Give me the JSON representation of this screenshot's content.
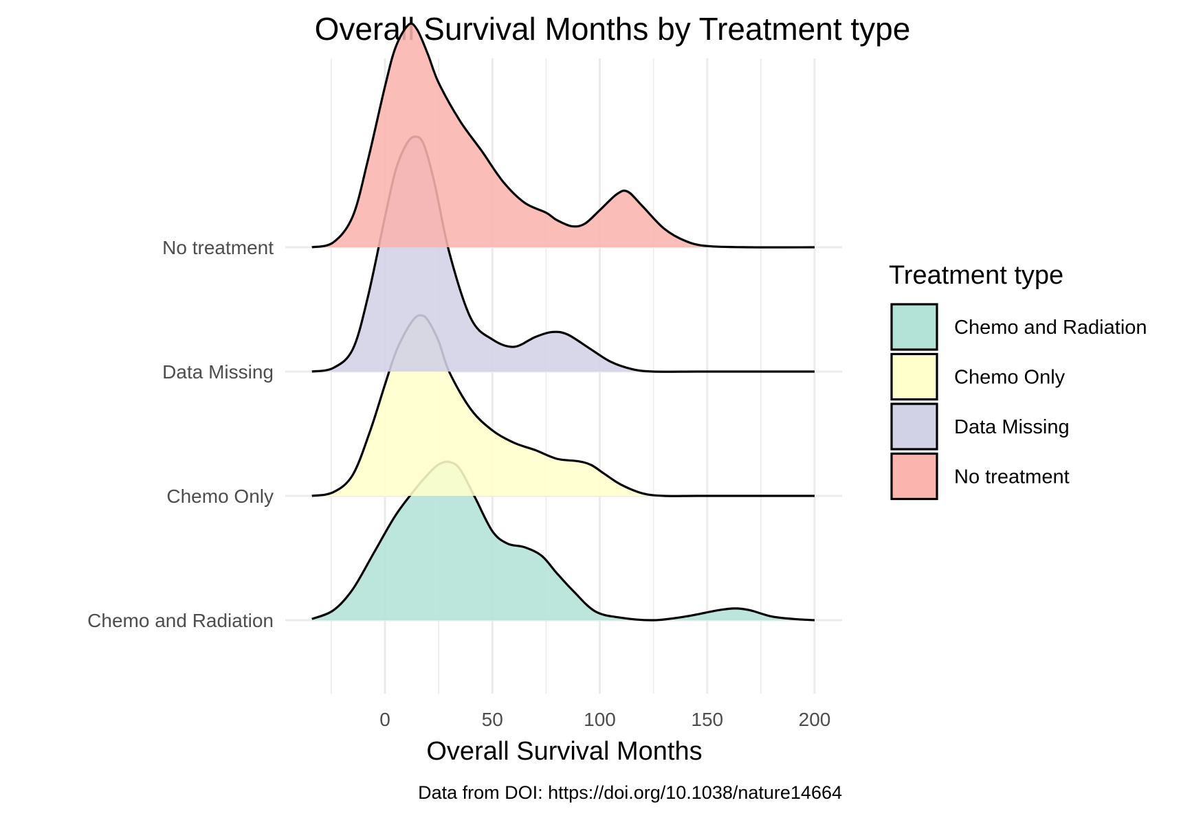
{
  "chart_data": {
    "type": "ridgeline",
    "title": "Overall Survival Months by Treatment type",
    "xlabel": "Overall Survival Months",
    "ylabel": "",
    "caption": "Data from DOI: https://doi.org/10.1038/nature14664",
    "xlim": [
      -34,
      200
    ],
    "x_ticks": [
      0,
      50,
      100,
      150,
      200
    ],
    "grid": true,
    "legend": {
      "title": "Treatment type",
      "placement": "right",
      "entries": [
        "Chemo and Radiation",
        "Chemo Only",
        "Data Missing",
        "No treatment"
      ]
    },
    "categories": [
      "Chemo and Radiation",
      "Chemo Only",
      "Data Missing",
      "No treatment"
    ],
    "density_scale_max": 1.5,
    "series": [
      {
        "name": "Chemo and Radiation",
        "color": "#b3e2d7",
        "x": [
          -34,
          -24,
          -15,
          -5,
          5,
          15,
          20,
          25,
          30,
          35,
          42,
          50,
          57,
          65,
          73,
          80,
          88,
          98,
          110,
          125,
          140,
          155,
          163,
          170,
          180,
          190,
          200
        ],
        "density": [
          0.01,
          0.08,
          0.25,
          0.55,
          0.85,
          1.08,
          1.18,
          1.26,
          1.28,
          1.22,
          0.99,
          0.72,
          0.62,
          0.59,
          0.52,
          0.38,
          0.23,
          0.07,
          0.02,
          0.0,
          0.03,
          0.08,
          0.095,
          0.08,
          0.03,
          0.01,
          0.0
        ]
      },
      {
        "name": "Chemo Only",
        "color": "#ffffcc",
        "x": [
          -34,
          -24,
          -15,
          -7,
          0,
          5,
          10,
          14,
          17,
          20,
          25,
          30,
          40,
          50,
          60,
          70,
          80,
          90,
          96,
          102,
          110,
          120,
          130,
          145,
          170,
          200
        ],
        "density": [
          0.0,
          0.03,
          0.17,
          0.52,
          0.9,
          1.16,
          1.34,
          1.44,
          1.46,
          1.42,
          1.25,
          1.0,
          0.7,
          0.53,
          0.43,
          0.37,
          0.3,
          0.28,
          0.25,
          0.18,
          0.09,
          0.02,
          0.0,
          0.0,
          0.0,
          0.0
        ]
      },
      {
        "name": "Data Missing",
        "color": "#d2d2e6",
        "x": [
          -34,
          -24,
          -15,
          -8,
          0,
          5,
          10,
          14,
          18,
          23,
          30,
          40,
          50,
          60,
          70,
          78,
          85,
          95,
          105,
          115,
          125,
          145,
          170,
          200
        ],
        "density": [
          0.0,
          0.03,
          0.18,
          0.6,
          1.25,
          1.63,
          1.84,
          1.9,
          1.84,
          1.53,
          0.96,
          0.43,
          0.26,
          0.2,
          0.28,
          0.32,
          0.3,
          0.19,
          0.08,
          0.02,
          0.0,
          0.0,
          0.0,
          0.0
        ]
      },
      {
        "name": "No treatment",
        "color": "#fbb4ae",
        "x": [
          -34,
          -24,
          -15,
          -8,
          0,
          5,
          11,
          15,
          20,
          25,
          35,
          45,
          55,
          65,
          75,
          80,
          87,
          93,
          100,
          108,
          113,
          120,
          130,
          140,
          150,
          170,
          200
        ],
        "density": [
          0.0,
          0.04,
          0.25,
          0.7,
          1.3,
          1.62,
          1.8,
          1.76,
          1.56,
          1.33,
          1.02,
          0.78,
          0.53,
          0.36,
          0.28,
          0.22,
          0.17,
          0.19,
          0.3,
          0.43,
          0.45,
          0.33,
          0.15,
          0.05,
          0.01,
          0.0,
          0.0
        ]
      }
    ]
  }
}
